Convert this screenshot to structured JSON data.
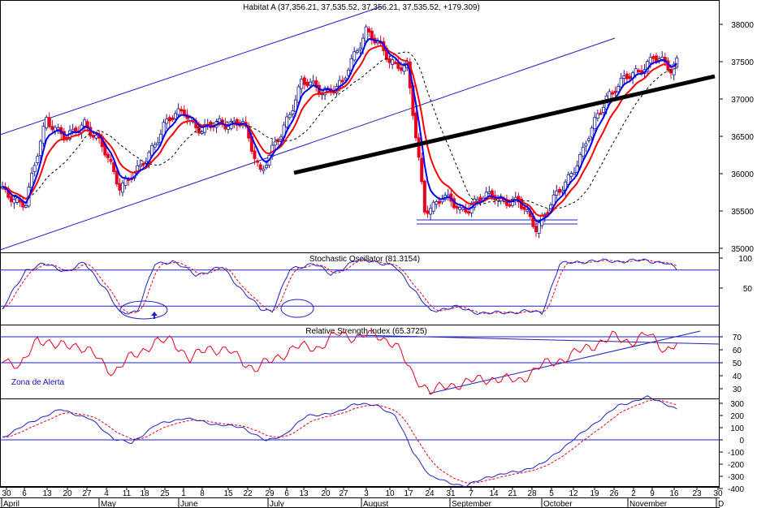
{
  "chart_data": [
    {
      "type": "candlestick",
      "title": "Habitat A (37,356.21, 37,535.52, 37,356.21, 37,535.52, +179.309)",
      "ylim": [
        34900,
        38300
      ],
      "yticks": [
        35000,
        35500,
        36000,
        36500,
        37000,
        37500,
        38000
      ],
      "grid": false,
      "anchors": [
        [
          0,
          35750
        ],
        [
          8,
          35600
        ],
        [
          15,
          36750
        ],
        [
          22,
          36450
        ],
        [
          28,
          36700
        ],
        [
          34,
          36350
        ],
        [
          40,
          35850
        ],
        [
          47,
          36050
        ],
        [
          55,
          36650
        ],
        [
          62,
          36850
        ],
        [
          68,
          36550
        ],
        [
          74,
          36700
        ],
        [
          82,
          36650
        ],
        [
          88,
          36050
        ],
        [
          95,
          36500
        ],
        [
          102,
          37250
        ],
        [
          108,
          37100
        ],
        [
          116,
          37200
        ],
        [
          124,
          37950
        ],
        [
          132,
          37500
        ],
        [
          138,
          37450
        ],
        [
          144,
          35500
        ],
        [
          150,
          35700
        ],
        [
          156,
          35500
        ],
        [
          162,
          35650
        ],
        [
          168,
          35700
        ],
        [
          176,
          35600
        ],
        [
          182,
          35300
        ],
        [
          190,
          35750
        ],
        [
          198,
          36300
        ],
        [
          206,
          37050
        ],
        [
          214,
          37300
        ],
        [
          222,
          37550
        ],
        [
          228,
          37400
        ],
        [
          230,
          37535
        ]
      ],
      "series": [
        {
          "name": "",
          "color": "#0000ff"
        },
        {
          "name": "",
          "color": "#ff0000"
        },
        {
          "name": "",
          "color": "#000000"
        }
      ],
      "annotations": [
        "trendline",
        "channel",
        "support-lines"
      ]
    },
    {
      "type": "line",
      "title": "Stochastic Oscillator (81.3154)",
      "ylim": [
        0,
        110
      ],
      "yticks": [
        100,
        50
      ],
      "reference_lines": [
        80,
        20
      ],
      "anchors": [
        [
          0,
          15
        ],
        [
          8,
          80
        ],
        [
          14,
          90
        ],
        [
          22,
          78
        ],
        [
          28,
          92
        ],
        [
          35,
          50
        ],
        [
          40,
          8
        ],
        [
          46,
          12
        ],
        [
          52,
          90
        ],
        [
          58,
          95
        ],
        [
          66,
          72
        ],
        [
          75,
          85
        ],
        [
          82,
          45
        ],
        [
          88,
          15
        ],
        [
          92,
          12
        ],
        [
          98,
          80
        ],
        [
          106,
          92
        ],
        [
          112,
          72
        ],
        [
          120,
          95
        ],
        [
          126,
          96
        ],
        [
          134,
          85
        ],
        [
          140,
          50
        ],
        [
          146,
          10
        ],
        [
          154,
          20
        ],
        [
          160,
          10
        ],
        [
          170,
          8
        ],
        [
          178,
          12
        ],
        [
          184,
          8
        ],
        [
          190,
          90
        ],
        [
          200,
          95
        ],
        [
          212,
          95
        ],
        [
          220,
          96
        ],
        [
          226,
          92
        ],
        [
          230,
          81
        ]
      ]
    },
    {
      "type": "line",
      "title": "Relative Strength Index (65.3725)",
      "ylim": [
        20,
        75
      ],
      "yticks": [
        70,
        60,
        50,
        40,
        30
      ],
      "reference_lines": [
        70,
        50
      ],
      "annotations": [
        "Zona de Alerta"
      ],
      "anchors": [
        [
          0,
          55
        ],
        [
          6,
          45
        ],
        [
          12,
          70
        ],
        [
          18,
          62
        ],
        [
          24,
          65
        ],
        [
          32,
          55
        ],
        [
          38,
          42
        ],
        [
          44,
          55
        ],
        [
          52,
          65
        ],
        [
          58,
          68
        ],
        [
          64,
          52
        ],
        [
          70,
          62
        ],
        [
          78,
          58
        ],
        [
          86,
          45
        ],
        [
          92,
          52
        ],
        [
          100,
          62
        ],
        [
          108,
          62
        ],
        [
          114,
          72
        ],
        [
          120,
          70
        ],
        [
          126,
          72
        ],
        [
          134,
          65
        ],
        [
          140,
          40
        ],
        [
          146,
          28
        ],
        [
          152,
          32
        ],
        [
          160,
          36
        ],
        [
          168,
          38
        ],
        [
          176,
          36
        ],
        [
          184,
          48
        ],
        [
          190,
          52
        ],
        [
          200,
          62
        ],
        [
          208,
          70
        ],
        [
          214,
          66
        ],
        [
          220,
          72
        ],
        [
          226,
          60
        ],
        [
          230,
          65
        ]
      ]
    },
    {
      "type": "line",
      "title": "",
      "ylim": [
        -450,
        400
      ],
      "yticks": [
        300,
        200,
        100,
        0,
        -100,
        -200,
        -300,
        -400
      ],
      "reference_lines": [
        0
      ],
      "anchors": [
        [
          0,
          20
        ],
        [
          10,
          150
        ],
        [
          20,
          250
        ],
        [
          30,
          170
        ],
        [
          38,
          10
        ],
        [
          44,
          -30
        ],
        [
          52,
          120
        ],
        [
          62,
          180
        ],
        [
          72,
          130
        ],
        [
          82,
          100
        ],
        [
          90,
          -10
        ],
        [
          96,
          40
        ],
        [
          104,
          200
        ],
        [
          114,
          220
        ],
        [
          120,
          300
        ],
        [
          128,
          280
        ],
        [
          134,
          200
        ],
        [
          140,
          -100
        ],
        [
          146,
          -300
        ],
        [
          152,
          -350
        ],
        [
          158,
          -380
        ],
        [
          166,
          -300
        ],
        [
          176,
          -260
        ],
        [
          184,
          -200
        ],
        [
          192,
          -50
        ],
        [
          200,
          100
        ],
        [
          210,
          280
        ],
        [
          220,
          350
        ],
        [
          226,
          300
        ],
        [
          230,
          250
        ]
      ]
    }
  ],
  "x_axis": {
    "day_labels": [
      "30",
      "6",
      "13",
      "20",
      "27",
      "4",
      "11",
      "18",
      "25",
      "1",
      "8",
      "15",
      "22",
      "29",
      "6",
      "13",
      "20",
      "27",
      "3",
      "10",
      "17",
      "24",
      "31",
      "7",
      "14",
      "21",
      "28",
      "5",
      "12",
      "19",
      "26",
      "2",
      "9",
      "16",
      "23",
      "30"
    ],
    "month_labels": [
      "April",
      "May",
      "June",
      "July",
      "August",
      "September",
      "October",
      "November",
      "D"
    ]
  }
}
